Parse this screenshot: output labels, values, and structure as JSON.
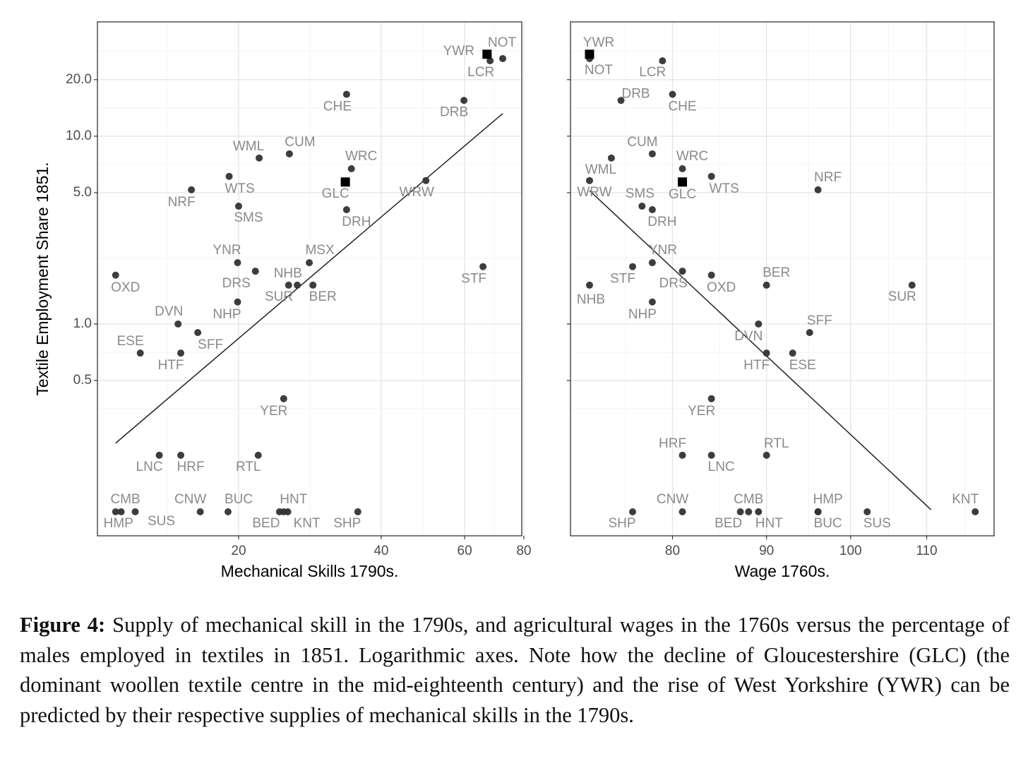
{
  "chart_data": [
    {
      "type": "scatter",
      "xlabel": "Mechanical Skills 1790s.",
      "ylabel": "Textile Employment Share 1851.",
      "xlog": true,
      "ylog": true,
      "grid": true,
      "ytick_labels": true,
      "xlim": [
        10.07,
        79.2
      ],
      "xticks": [
        20,
        40,
        60,
        80
      ],
      "ylim": [
        0.0745,
        40.6
      ],
      "yticks": [
        0.5,
        {
          "value": 1,
          "label": "1.0"
        },
        {
          "value": 5,
          "label": "5.0"
        },
        {
          "value": 10,
          "label": "10.0"
        },
        {
          "value": 20,
          "label": "20.0"
        }
      ],
      "series": [
        {
          "marker": "circle",
          "color": "#333333",
          "labels": [
            "LCR",
            "NOT",
            "CHE",
            "DRB",
            "CUM",
            "WML",
            "WRC",
            "WTS",
            "WRW",
            "NRF",
            "SMS",
            "DRH",
            "YNR",
            "MSX",
            "STF",
            "DRS",
            "OXD",
            "NHB",
            "SUR",
            "BER",
            "NHP",
            "DVN",
            "SFF",
            "ESE",
            "HTF",
            "YER",
            "LNC",
            "HRF",
            "RTL",
            "HMP",
            "CMB",
            "SUS",
            "CNW",
            "BUC",
            "BED",
            "HNT",
            "KNT",
            "SHP"
          ],
          "x": [
            67.9,
            72.2,
            33.8,
            59.8,
            25.6,
            22.1,
            34.6,
            19.1,
            49.7,
            15.9,
            20.0,
            33.8,
            19.9,
            28.2,
            65.6,
            21.7,
            11.0,
            25.5,
            26.6,
            28.7,
            19.9,
            14.9,
            16.4,
            12.4,
            15.1,
            24.9,
            13.6,
            15.1,
            22.0,
            11.0,
            11.3,
            12.1,
            16.6,
            19.0,
            24.4,
            24.9,
            25.4,
            35.7
          ],
          "values": [
            25.2,
            25.9,
            16.7,
            15.5,
            8.05,
            7.65,
            6.71,
            6.11,
            5.8,
            5.18,
            4.24,
            4.06,
            2.12,
            2.12,
            2.02,
            1.91,
            1.82,
            1.61,
            1.61,
            1.61,
            1.31,
            1.0,
            0.9,
            0.7,
            0.7,
            0.4,
            0.2,
            0.2,
            0.2,
            0.1,
            0.1,
            0.1,
            0.1,
            0.1,
            0.1,
            0.1,
            0.1,
            0.1
          ]
        },
        {
          "marker": "square",
          "color": "#000000",
          "labels": [
            "YWR",
            "GLC"
          ],
          "x": [
            66.9,
            33.6
          ],
          "values": [
            27.3,
            5.7
          ]
        }
      ],
      "fit": {
        "x": [
          11.0,
          72.2
        ],
        "values": [
          0.232,
          13.2
        ]
      }
    },
    {
      "type": "scatter",
      "xlabel": "Wage 1760s.",
      "xlog": true,
      "ylog": true,
      "grid": true,
      "ytick_labels": false,
      "xlim": [
        70.4,
        119.7
      ],
      "xticks": [
        80,
        90,
        100,
        110
      ],
      "ylim": [
        0.0745,
        40.6
      ],
      "yticks": [
        0.5,
        1,
        5,
        10,
        20
      ],
      "series": [
        {
          "marker": "circle",
          "color": "#333333",
          "labels": [
            "LCR",
            "NOT",
            "CHE",
            "DRB",
            "CUM",
            "WML",
            "WRC",
            "WTS",
            "WRW",
            "NRF",
            "SMS",
            "DRH",
            "YNR",
            "STF",
            "DRS",
            "OXD",
            "NHB",
            "SUR",
            "BER",
            "NHP",
            "DVN",
            "SFF",
            "ESE",
            "HTF",
            "YER",
            "LNC",
            "HRF",
            "RTL",
            "HMP",
            "CMB",
            "SUS",
            "CNW",
            "BUC",
            "BED",
            "HNT",
            "KNT",
            "SHP"
          ],
          "x": [
            79,
            72.1,
            80,
            75,
            78,
            74.1,
            81,
            84,
            72.1,
            96,
            77,
            78,
            78,
            76.1,
            81,
            84,
            72.1,
            108,
            90,
            78,
            89.1,
            95,
            93,
            90,
            84,
            84,
            81,
            90,
            96,
            88,
            102.1,
            81,
            96,
            87.1,
            89.1,
            116.9,
            76.1
          ],
          "values": [
            25.2,
            25.9,
            16.7,
            15.5,
            8.05,
            7.65,
            6.71,
            6.11,
            5.8,
            5.18,
            4.24,
            4.06,
            2.12,
            2.02,
            1.91,
            1.82,
            1.61,
            1.61,
            1.61,
            1.31,
            1.0,
            0.9,
            0.7,
            0.7,
            0.4,
            0.2,
            0.2,
            0.2,
            0.1,
            0.1,
            0.1,
            0.1,
            0.1,
            0.1,
            0.1,
            0.1,
            0.1
          ]
        },
        {
          "marker": "square",
          "color": "#000000",
          "labels": [
            "YWR",
            "GLC"
          ],
          "x": [
            72.1,
            81
          ],
          "values": [
            27.3,
            5.7
          ]
        }
      ],
      "fit": {
        "x": [
          72.1,
          110.6
        ],
        "values": [
          5.13,
          0.1026
        ]
      }
    }
  ],
  "caption": {
    "label": "Figure 4:",
    "text": "Supply of mechanical skill in the 1790s, and agricultural wages in the 1760s versus the percentage of males employed in textiles in 1851. Logarithmic axes. Note how the decline of Gloucestershire (GLC) (the dominant woollen textile centre in the mid-eighteenth century) and the rise of West Yorkshire (YWR) can be predicted by their respective supplies of mechanical skills in the 1790s."
  }
}
